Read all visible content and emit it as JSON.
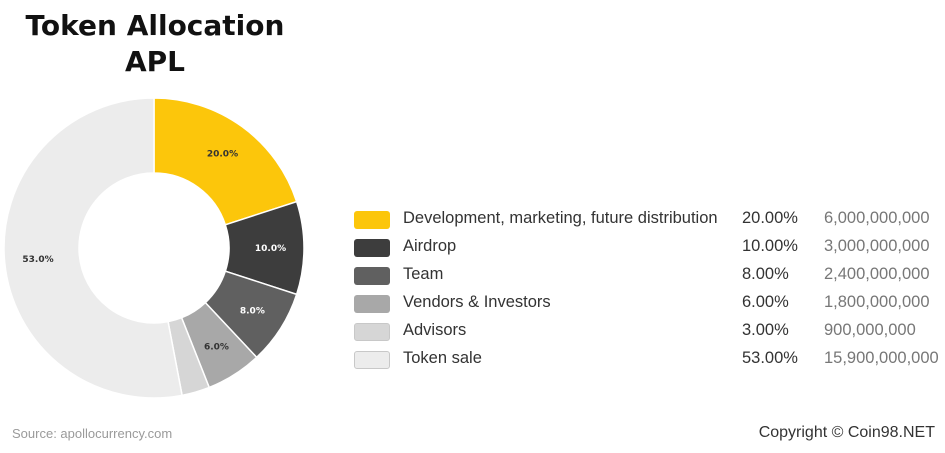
{
  "chart_data": {
    "type": "pie",
    "title": "Token Allocation",
    "subtitle": "APL",
    "categories": [
      "Development, marketing, future distribution",
      "Airdrop",
      "Team",
      "Vendors & Investors",
      "Advisors",
      "Token sale"
    ],
    "values": [
      20.0,
      10.0,
      8.0,
      6.0,
      3.0,
      53.0
    ],
    "slice_labels": [
      "20.0%",
      "10.0%",
      "8.0%",
      "6.0%",
      "",
      "53.0%"
    ],
    "colors": [
      "#fcc60b",
      "#3d3d3d",
      "#606060",
      "#a8a8a8",
      "#d6d6d6",
      "#ececec"
    ],
    "legend": [
      {
        "label": "Development, marketing, future distribution",
        "percent": "20.00%",
        "amount": "6,000,000,000"
      },
      {
        "label": "Airdrop",
        "percent": "10.00%",
        "amount": "3,000,000,000"
      },
      {
        "label": "Team",
        "percent": "8.00%",
        "amount": "2,400,000,000"
      },
      {
        "label": "Vendors & Investors",
        "percent": "6.00%",
        "amount": "1,800,000,000"
      },
      {
        "label": "Advisors",
        "percent": "3.00%",
        "amount": "900,000,000"
      },
      {
        "label": "Token sale",
        "percent": "53.00%",
        "amount": "15,900,000,000"
      }
    ],
    "legend_placement": "right",
    "donut": true
  },
  "footer": {
    "source": "Source: apollocurrency.com",
    "copyright": "Copyright © Coin98.NET"
  }
}
